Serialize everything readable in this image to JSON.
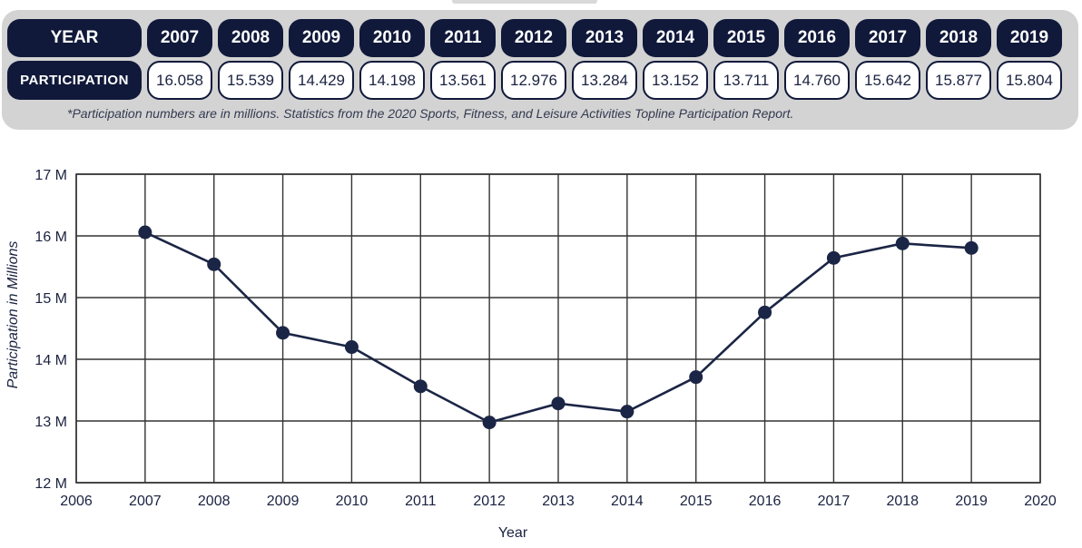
{
  "table": {
    "year_label": "YEAR",
    "participation_label": "PARTICIPATION",
    "years": [
      "2007",
      "2008",
      "2009",
      "2010",
      "2011",
      "2012",
      "2013",
      "2014",
      "2015",
      "2016",
      "2017",
      "2018",
      "2019"
    ],
    "values": [
      "16.058",
      "15.539",
      "14.429",
      "14.198",
      "13.561",
      "12.976",
      "13.284",
      "13.152",
      "13.711",
      "14.760",
      "15.642",
      "15.877",
      "15.804"
    ],
    "note": "*Participation numbers are in millions. Statistics from the 2020 Sports, Fitness, and Leisure Activities Topline Participation Report."
  },
  "chart_data": {
    "type": "line",
    "title": "",
    "xlabel": "Year",
    "ylabel": "Participation in Millions",
    "x": [
      2007,
      2008,
      2009,
      2010,
      2011,
      2012,
      2013,
      2014,
      2015,
      2016,
      2017,
      2018,
      2019
    ],
    "series": [
      {
        "name": "Participation",
        "values": [
          16.058,
          15.539,
          14.429,
          14.198,
          13.561,
          12.976,
          13.284,
          13.152,
          13.711,
          14.76,
          15.642,
          15.877,
          15.804
        ]
      }
    ],
    "xlim": [
      2006,
      2020
    ],
    "ylim": [
      12,
      17
    ],
    "x_ticks": [
      "2006",
      "2007",
      "2008",
      "2009",
      "2010",
      "2011",
      "2012",
      "2013",
      "2014",
      "2015",
      "2016",
      "2017",
      "2018",
      "2019",
      "2020"
    ],
    "y_ticks": [
      "12 M",
      "13 M",
      "14 M",
      "15 M",
      "16 M",
      "17 M"
    ],
    "grid": true,
    "line_color": "#1b2545"
  }
}
